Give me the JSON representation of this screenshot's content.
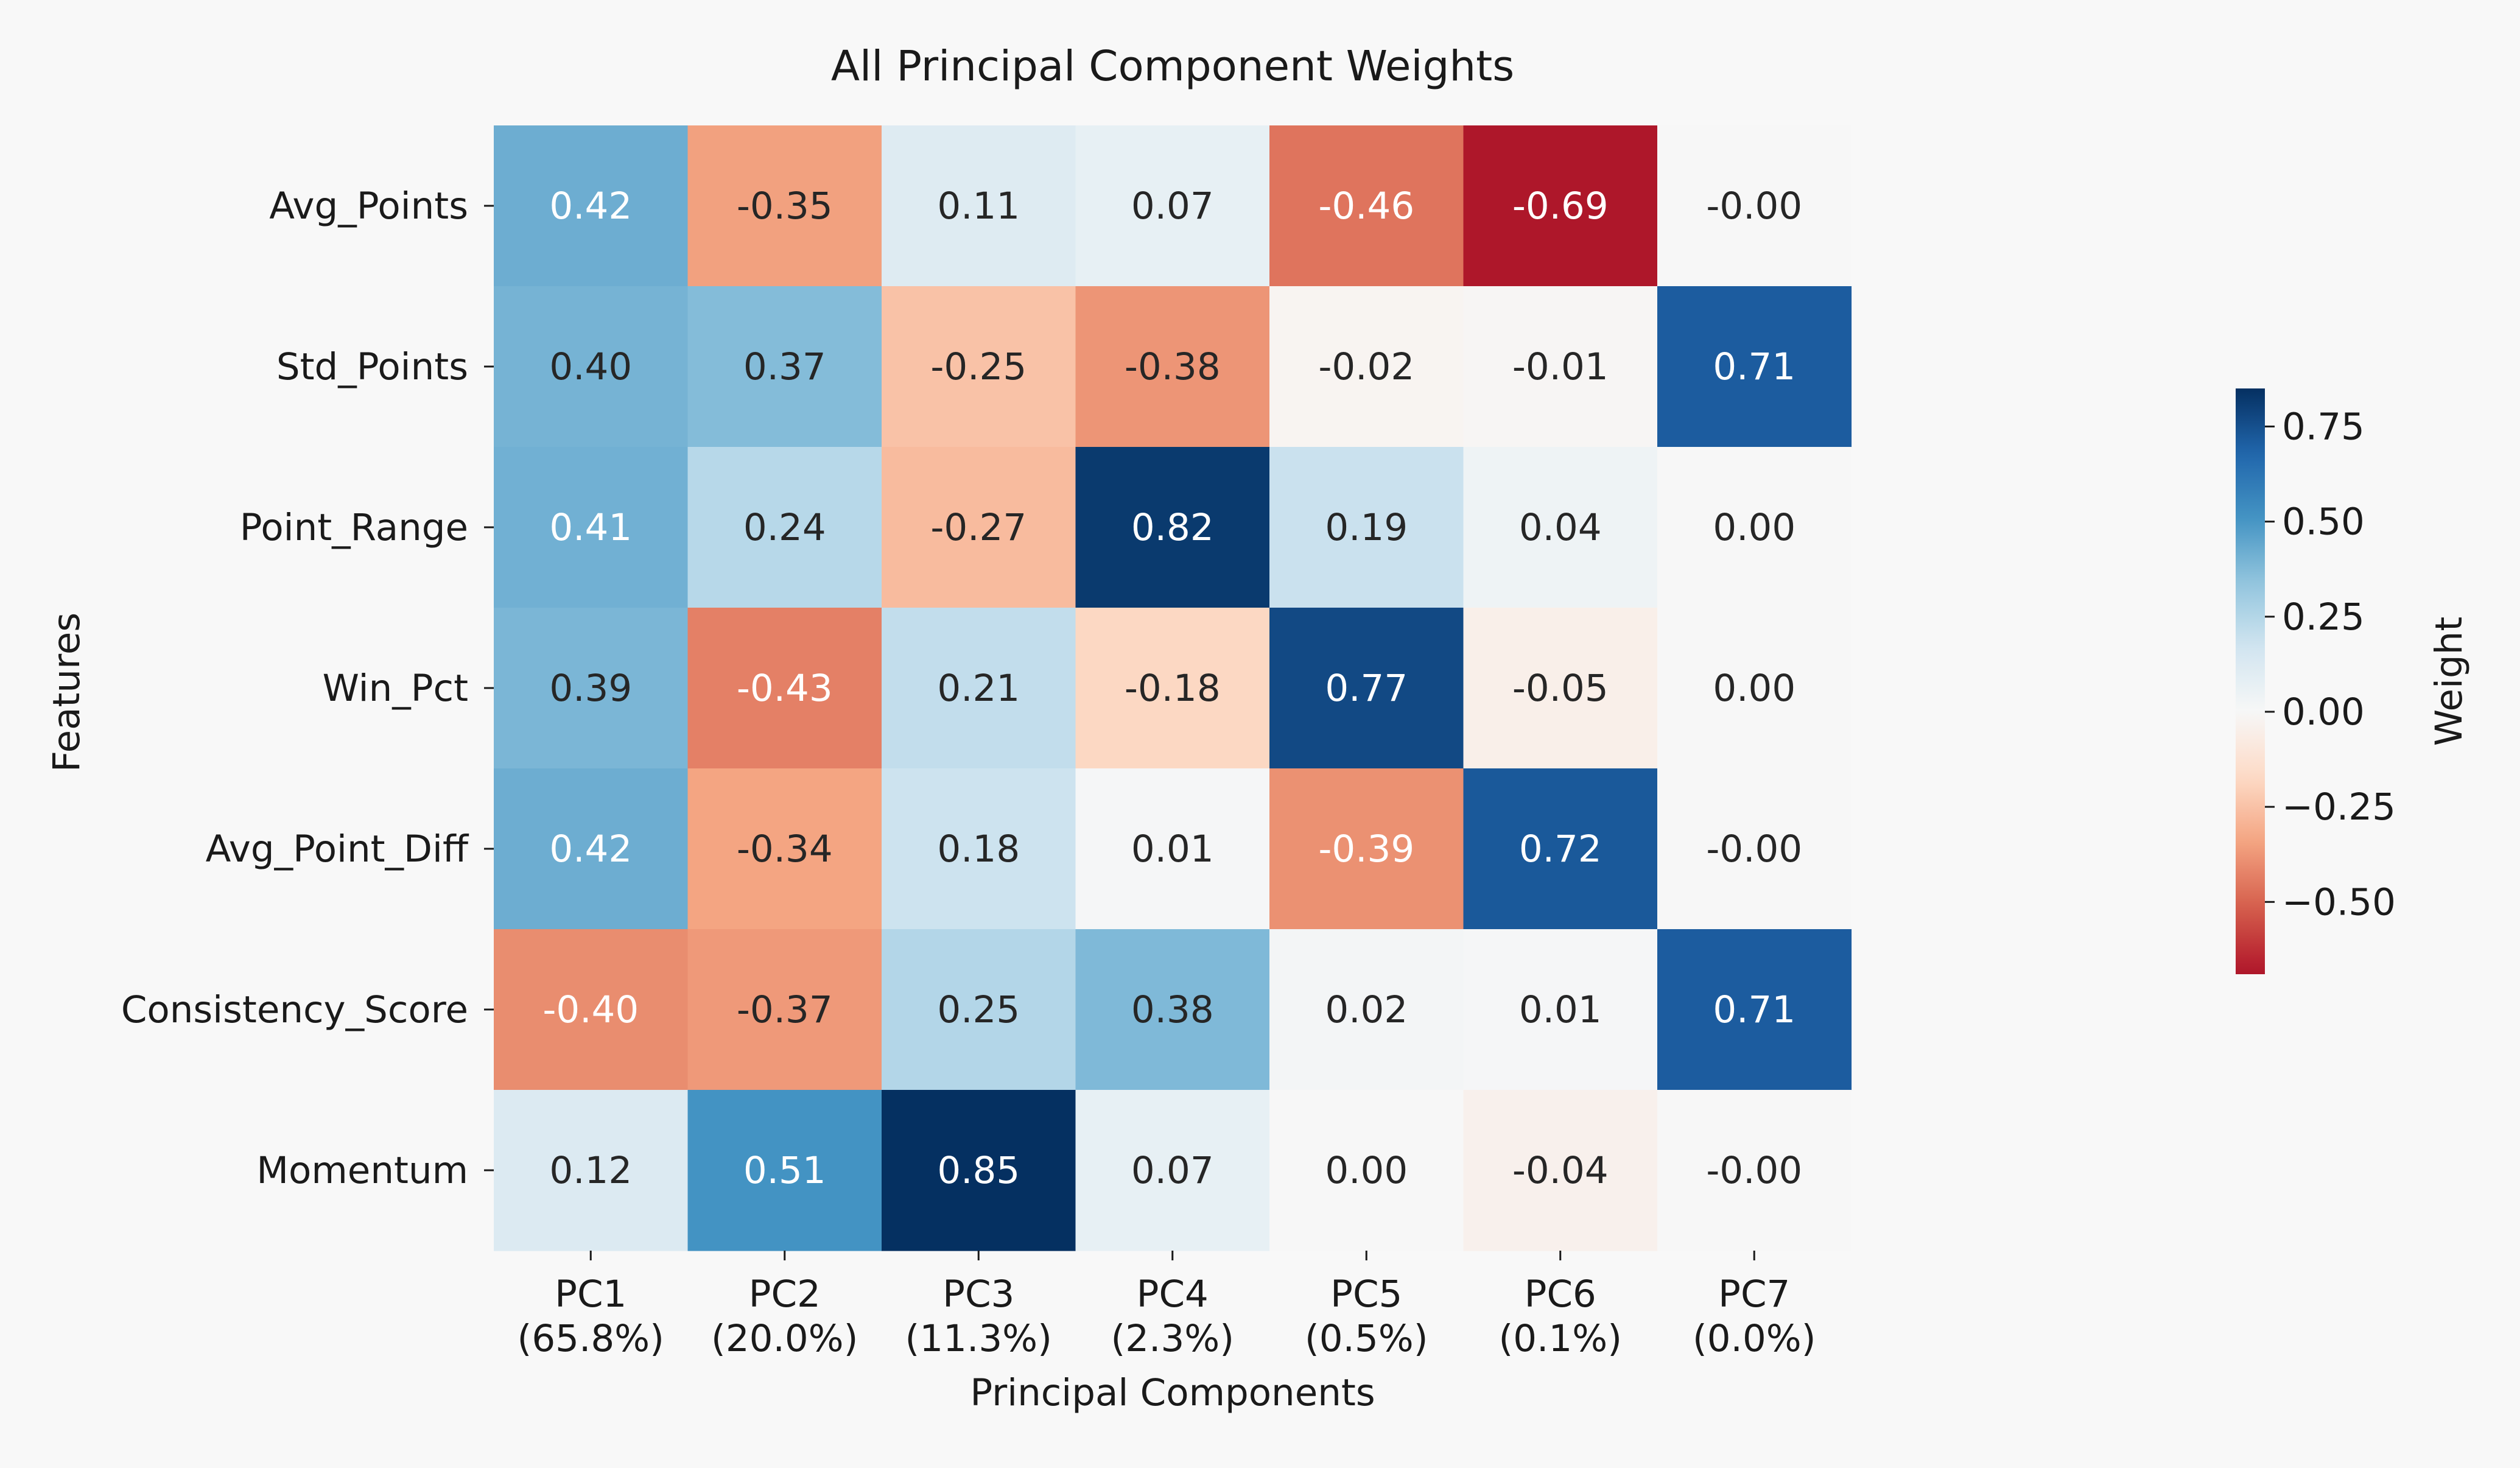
{
  "chart_data": {
    "type": "heatmap",
    "title": "All Principal Component Weights",
    "xlabel": "Principal Components",
    "ylabel": "Features",
    "colorbar_label": "Weight",
    "colormap": "RdBu",
    "vmin": -0.69,
    "vmax": 0.85,
    "colorbar_ticks": [
      "0.75",
      "0.50",
      "0.25",
      "0.00",
      "−0.25",
      "−0.50"
    ],
    "colorbar_tick_values": [
      0.75,
      0.5,
      0.25,
      0.0,
      -0.25,
      -0.5
    ],
    "x_categories": [
      {
        "name": "PC1",
        "variance": "(65.8%)"
      },
      {
        "name": "PC2",
        "variance": "(20.0%)"
      },
      {
        "name": "PC3",
        "variance": "(11.3%)"
      },
      {
        "name": "PC4",
        "variance": "(2.3%)"
      },
      {
        "name": "PC5",
        "variance": "(0.5%)"
      },
      {
        "name": "PC6",
        "variance": "(0.1%)"
      },
      {
        "name": "PC7",
        "variance": "(0.0%)"
      }
    ],
    "y_categories": [
      "Avg_Points",
      "Std_Points",
      "Point_Range",
      "Win_Pct",
      "Avg_Point_Diff",
      "Consistency_Score",
      "Momentum"
    ],
    "values": [
      [
        0.42,
        -0.35,
        0.11,
        0.07,
        -0.46,
        -0.69,
        -0.0
      ],
      [
        0.4,
        0.37,
        -0.25,
        -0.38,
        -0.02,
        -0.01,
        0.71
      ],
      [
        0.41,
        0.24,
        -0.27,
        0.82,
        0.19,
        0.04,
        0.0
      ],
      [
        0.39,
        -0.43,
        0.21,
        -0.18,
        0.77,
        -0.05,
        0.0
      ],
      [
        0.42,
        -0.34,
        0.18,
        0.01,
        -0.39,
        0.72,
        -0.0
      ],
      [
        -0.4,
        -0.37,
        0.25,
        0.38,
        0.02,
        0.01,
        0.71
      ],
      [
        0.12,
        0.51,
        0.85,
        0.07,
        0.0,
        -0.04,
        -0.0
      ]
    ],
    "labels": [
      [
        "0.42",
        "-0.35",
        "0.11",
        "0.07",
        "-0.46",
        "-0.69",
        "-0.00"
      ],
      [
        "0.40",
        "0.37",
        "-0.25",
        "-0.38",
        "-0.02",
        "-0.01",
        "0.71"
      ],
      [
        "0.41",
        "0.24",
        "-0.27",
        "0.82",
        "0.19",
        "0.04",
        "0.00"
      ],
      [
        "0.39",
        "-0.43",
        "0.21",
        "-0.18",
        "0.77",
        "-0.05",
        "0.00"
      ],
      [
        "0.42",
        "-0.34",
        "0.18",
        "0.01",
        "-0.39",
        "0.72",
        "-0.00"
      ],
      [
        "-0.40",
        "-0.37",
        "0.25",
        "0.38",
        "0.02",
        "0.01",
        "0.71"
      ],
      [
        "0.12",
        "0.51",
        "0.85",
        "0.07",
        "0.00",
        "-0.04",
        "-0.00"
      ]
    ]
  }
}
